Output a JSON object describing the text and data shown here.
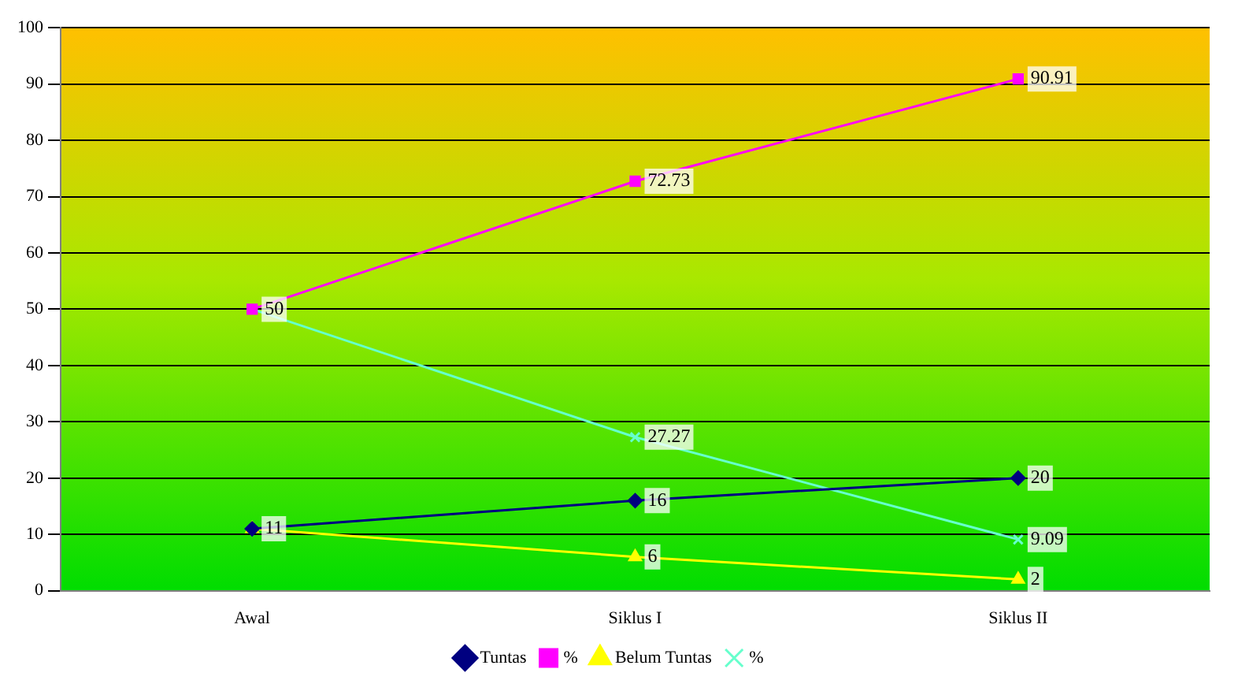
{
  "chart_data": {
    "type": "line",
    "categories": [
      "Awal",
      "Siklus I",
      "Siklus II"
    ],
    "series": [
      {
        "name": "Tuntas",
        "color": "#000080",
        "marker": "diamond",
        "values": [
          11,
          16,
          20
        ],
        "value_labels": [
          null,
          "16",
          "20"
        ]
      },
      {
        "name": "%",
        "color": "#ff00ff",
        "marker": "square",
        "values": [
          50,
          72.73,
          90.91
        ],
        "value_labels": [
          null,
          "72.73",
          "90.91"
        ]
      },
      {
        "name": "Belum Tuntas",
        "color": "#ffff00",
        "marker": "triangle",
        "values": [
          11,
          6,
          2
        ],
        "value_labels": [
          "11",
          "6",
          "2"
        ]
      },
      {
        "name": "%",
        "color": "#66ffcc",
        "marker": "cross",
        "values": [
          50,
          27.27,
          9.09
        ],
        "value_labels": [
          "50",
          "27.27",
          "9.09"
        ]
      }
    ],
    "ylim": [
      0,
      100
    ],
    "yticks": [
      0,
      10,
      20,
      30,
      40,
      50,
      60,
      70,
      80,
      90,
      100
    ],
    "grid": "y",
    "legend": "bottom"
  }
}
